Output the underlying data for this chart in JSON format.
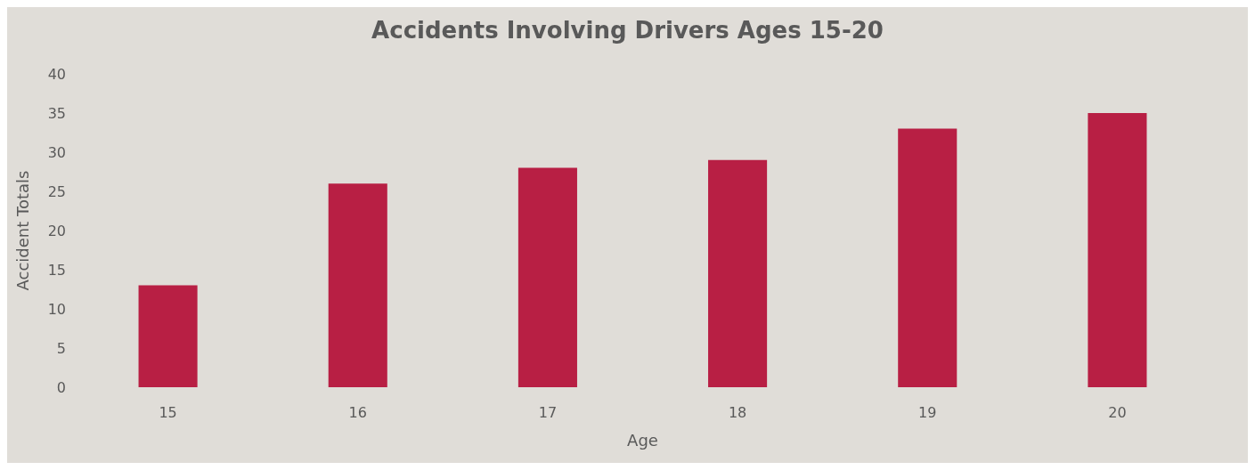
{
  "chart_data": {
    "type": "bar",
    "title": "Accidents Involving Drivers Ages 15-20",
    "xlabel": "Age",
    "ylabel": "Accident Totals",
    "categories": [
      "15",
      "16",
      "17",
      "18",
      "19",
      "20"
    ],
    "values": [
      13,
      26,
      28,
      29,
      33,
      35
    ],
    "color": "#b81f44",
    "ylim": [
      0,
      40
    ],
    "yticks": [
      0,
      5,
      10,
      15,
      20,
      25,
      30,
      35,
      40
    ],
    "grid": false
  }
}
